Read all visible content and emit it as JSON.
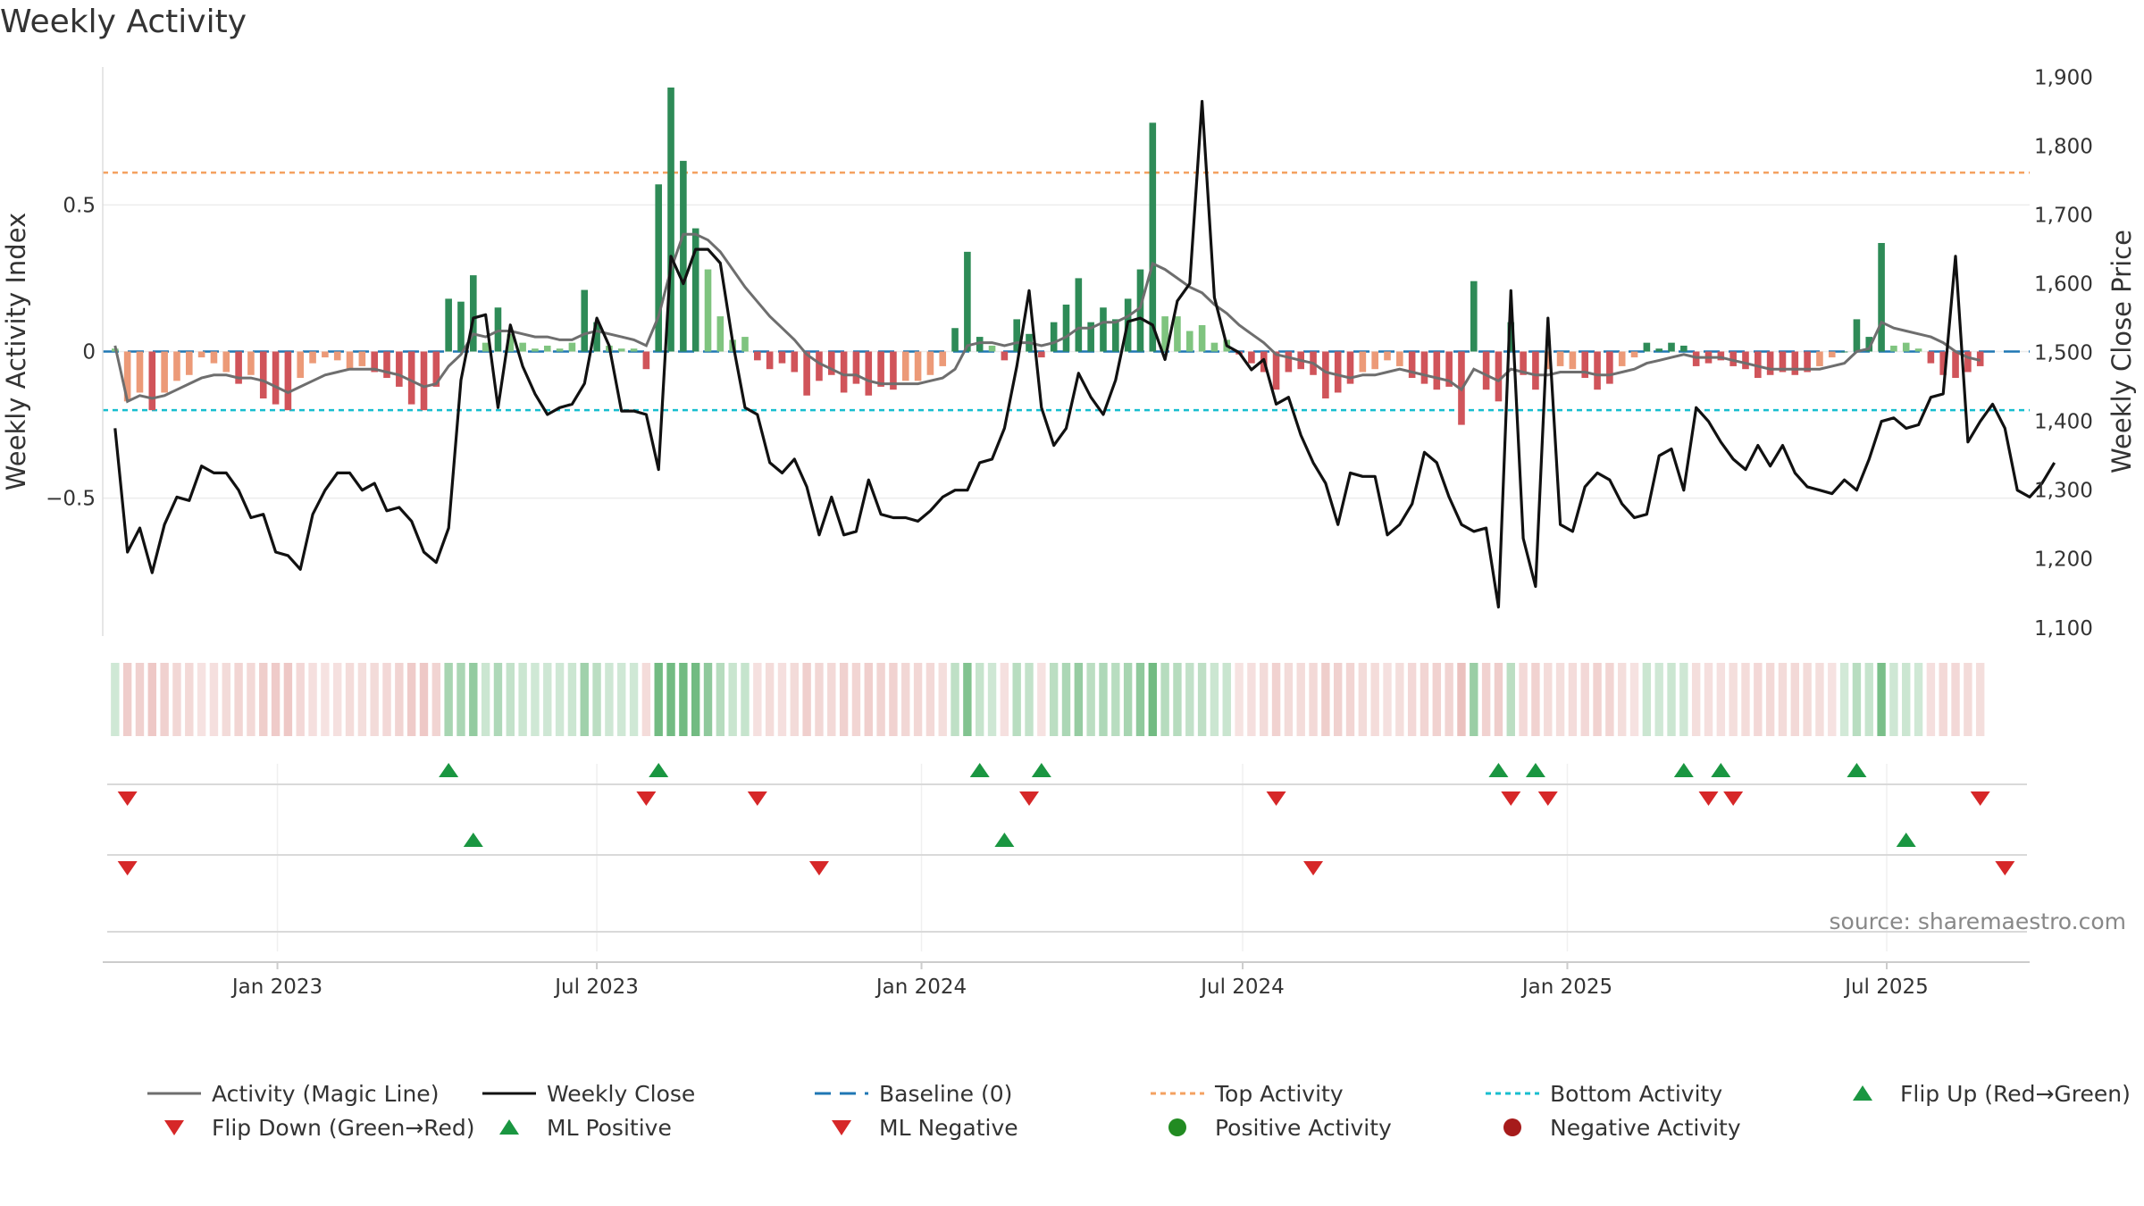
{
  "title": "Weekly Activity",
  "source": "source: sharemaestro.com",
  "colors": {
    "bar_dark_green": "#2e8b57",
    "bar_light_green": "#7fc47f",
    "bar_dark_red": "#d0545a",
    "bar_light_red": "#ec9a78",
    "magic_line": "#6e6e6e",
    "close_line": "#111111",
    "baseline": "#1f77b4",
    "top_line": "#f4a261",
    "bottom_line": "#17becf",
    "flip_up": "#1a9641",
    "flip_down": "#d62728",
    "positive_dot": "#228b22",
    "negative_dot": "#a61b1b",
    "strip_green": "#6ab77b",
    "strip_red": "#e3a7a3"
  },
  "chart_data": {
    "type": "bar+line",
    "title": "Weekly Activity",
    "x_dates_start": "2022-10-01",
    "x_tick_labels": [
      "Jan 2023",
      "Jul 2023",
      "Jan 2024",
      "Jul 2024",
      "Jan 2025",
      "Jul 2025"
    ],
    "x_tick_dates": [
      "2023-01-01",
      "2023-07-01",
      "2024-01-01",
      "2024-07-01",
      "2025-01-01",
      "2025-07-01"
    ],
    "x_range": [
      "2022-09-24",
      "2025-09-20"
    ],
    "left_axis": {
      "label": "Weekly Activity Index",
      "ylim": [
        -0.97,
        0.97
      ],
      "ticks": [
        0.5,
        0,
        -0.5
      ],
      "tick_labels": [
        "0.5",
        "0",
        "−0.5"
      ]
    },
    "right_axis": {
      "label": "Weekly Close Price",
      "ylim": [
        1088,
        1915
      ],
      "ticks": [
        1900,
        1800,
        1700,
        1600,
        1500,
        1400,
        1300,
        1200,
        1100
      ],
      "tick_labels": [
        "1,900",
        "1,800",
        "1,700",
        "1,600",
        "1,500",
        "1,400",
        "1,300",
        "1,200",
        "1,100"
      ]
    },
    "top_activity": 0.61,
    "bottom_activity": -0.2,
    "activity_index": [
      0.01,
      -0.17,
      -0.14,
      -0.2,
      -0.14,
      -0.1,
      -0.08,
      -0.02,
      -0.04,
      -0.07,
      -0.11,
      -0.08,
      -0.16,
      -0.18,
      -0.2,
      -0.09,
      -0.04,
      -0.02,
      -0.03,
      -0.06,
      -0.05,
      -0.07,
      -0.09,
      -0.12,
      -0.18,
      -0.2,
      -0.12,
      0.18,
      0.17,
      0.26,
      0.03,
      0.15,
      0.06,
      0.03,
      0.01,
      0.02,
      0.01,
      0.03,
      0.21,
      0.1,
      0.02,
      0.01,
      0.01,
      -0.06,
      0.57,
      0.9,
      0.65,
      0.42,
      0.28,
      0.12,
      0.04,
      0.05,
      -0.03,
      -0.06,
      -0.04,
      -0.07,
      -0.15,
      -0.1,
      -0.08,
      -0.14,
      -0.11,
      -0.15,
      -0.12,
      -0.13,
      -0.1,
      -0.1,
      -0.08,
      -0.05,
      0.08,
      0.34,
      0.05,
      0.02,
      -0.03,
      0.11,
      0.06,
      -0.02,
      0.1,
      0.16,
      0.25,
      0.1,
      0.15,
      0.11,
      0.18,
      0.28,
      0.78,
      0.12,
      0.12,
      0.07,
      0.09,
      0.03,
      0.04,
      -0.01,
      -0.04,
      -0.07,
      -0.13,
      -0.07,
      -0.06,
      -0.08,
      -0.16,
      -0.14,
      -0.11,
      -0.07,
      -0.06,
      -0.03,
      -0.05,
      -0.09,
      -0.11,
      -0.13,
      -0.12,
      -0.25,
      0.24,
      -0.13,
      -0.17,
      0.1,
      -0.08,
      -0.13,
      -0.06,
      -0.05,
      -0.06,
      -0.09,
      -0.13,
      -0.11,
      -0.05,
      -0.02,
      0.03,
      0.01,
      0.03,
      0.02,
      -0.05,
      -0.04,
      -0.03,
      -0.05,
      -0.06,
      -0.09,
      -0.08,
      -0.07,
      -0.08,
      -0.07,
      -0.05,
      -0.02,
      0.0,
      0.11,
      0.05,
      0.37,
      0.02,
      0.03,
      0.01,
      -0.04,
      -0.08,
      -0.09,
      -0.07,
      -0.05
    ],
    "magic_line": [
      0.02,
      -0.17,
      -0.15,
      -0.16,
      -0.15,
      -0.13,
      -0.11,
      -0.09,
      -0.08,
      -0.08,
      -0.09,
      -0.09,
      -0.1,
      -0.12,
      -0.14,
      -0.12,
      -0.1,
      -0.08,
      -0.07,
      -0.06,
      -0.06,
      -0.06,
      -0.07,
      -0.08,
      -0.1,
      -0.12,
      -0.11,
      -0.05,
      -0.01,
      0.06,
      0.05,
      0.07,
      0.07,
      0.06,
      0.05,
      0.05,
      0.04,
      0.04,
      0.06,
      0.07,
      0.06,
      0.05,
      0.04,
      0.02,
      0.12,
      0.28,
      0.4,
      0.4,
      0.38,
      0.34,
      0.28,
      0.22,
      0.17,
      0.12,
      0.08,
      0.04,
      -0.01,
      -0.04,
      -0.06,
      -0.08,
      -0.08,
      -0.1,
      -0.11,
      -0.11,
      -0.11,
      -0.11,
      -0.1,
      -0.09,
      -0.06,
      0.02,
      0.03,
      0.03,
      0.02,
      0.03,
      0.03,
      0.02,
      0.03,
      0.05,
      0.08,
      0.08,
      0.1,
      0.1,
      0.12,
      0.15,
      0.3,
      0.28,
      0.25,
      0.22,
      0.2,
      0.16,
      0.13,
      0.09,
      0.06,
      0.03,
      -0.01,
      -0.02,
      -0.03,
      -0.04,
      -0.07,
      -0.08,
      -0.09,
      -0.08,
      -0.08,
      -0.07,
      -0.06,
      -0.07,
      -0.08,
      -0.09,
      -0.1,
      -0.13,
      -0.06,
      -0.08,
      -0.1,
      -0.06,
      -0.07,
      -0.08,
      -0.08,
      -0.07,
      -0.07,
      -0.07,
      -0.08,
      -0.08,
      -0.07,
      -0.06,
      -0.04,
      -0.03,
      -0.02,
      -0.01,
      -0.02,
      -0.02,
      -0.02,
      -0.03,
      -0.04,
      -0.05,
      -0.06,
      -0.06,
      -0.06,
      -0.06,
      -0.06,
      -0.05,
      -0.04,
      0.0,
      0.01,
      0.1,
      0.08,
      0.07,
      0.06,
      0.05,
      0.03,
      0.0,
      -0.02,
      -0.03
    ],
    "weekly_close": [
      1390,
      1210,
      1245,
      1180,
      1250,
      1290,
      1285,
      1335,
      1325,
      1325,
      1300,
      1260,
      1265,
      1210,
      1205,
      1185,
      1265,
      1300,
      1325,
      1325,
      1300,
      1310,
      1270,
      1275,
      1255,
      1210,
      1195,
      1245,
      1460,
      1550,
      1555,
      1420,
      1540,
      1480,
      1440,
      1410,
      1420,
      1425,
      1455,
      1550,
      1510,
      1415,
      1415,
      1410,
      1330,
      1640,
      1600,
      1650,
      1650,
      1630,
      1515,
      1420,
      1410,
      1340,
      1325,
      1345,
      1305,
      1235,
      1290,
      1235,
      1240,
      1315,
      1265,
      1260,
      1260,
      1255,
      1270,
      1290,
      1300,
      1300,
      1340,
      1345,
      1390,
      1480,
      1590,
      1420,
      1365,
      1390,
      1470,
      1435,
      1410,
      1460,
      1545,
      1550,
      1540,
      1490,
      1575,
      1600,
      1865,
      1580,
      1510,
      1500,
      1475,
      1490,
      1425,
      1435,
      1380,
      1340,
      1310,
      1250,
      1325,
      1320,
      1320,
      1235,
      1250,
      1280,
      1355,
      1340,
      1290,
      1250,
      1240,
      1245,
      1130,
      1590,
      1230,
      1160,
      1550,
      1250,
      1240,
      1305,
      1325,
      1315,
      1280,
      1260,
      1265,
      1350,
      1360,
      1300,
      1420,
      1400,
      1370,
      1345,
      1330,
      1365,
      1335,
      1365,
      1325,
      1305,
      1300,
      1295,
      1315,
      1300,
      1345,
      1400,
      1405,
      1390,
      1395,
      1435,
      1440,
      1640,
      1370,
      1400,
      1425,
      1390,
      1300,
      1290,
      1310,
      1340
    ],
    "flip_up_rows": [
      {
        "index": 27
      },
      {
        "index": 44
      },
      {
        "index": 70
      },
      {
        "index": 75
      },
      {
        "index": 112
      },
      {
        "index": 115
      },
      {
        "index": 127
      },
      {
        "index": 130
      },
      {
        "index": 141
      }
    ],
    "flip_down_rows": [
      {
        "index": 1
      },
      {
        "index": 43
      },
      {
        "index": 52
      },
      {
        "index": 74
      },
      {
        "index": 94
      },
      {
        "index": 113
      },
      {
        "index": 116
      },
      {
        "index": 129
      },
      {
        "index": 131
      },
      {
        "index": 151
      }
    ],
    "ml_positive": [
      {
        "index": 29
      },
      {
        "index": 72
      },
      {
        "index": 145
      }
    ],
    "ml_negative": [
      {
        "index": 1
      },
      {
        "index": 57
      },
      {
        "index": 97
      },
      {
        "index": 153
      }
    ]
  },
  "legend": [
    {
      "label": "Activity (Magic Line)",
      "kind": "line-gray"
    },
    {
      "label": "Weekly Close",
      "kind": "line-black"
    },
    {
      "label": "Baseline (0)",
      "kind": "dash-blue"
    },
    {
      "label": "Top Activity",
      "kind": "dot-orange"
    },
    {
      "label": "Bottom Activity",
      "kind": "dot-cyan"
    },
    {
      "label": "Flip Up (Red→Green)",
      "kind": "tri-up-green"
    },
    {
      "label": "Flip Down (Green→Red)",
      "kind": "tri-down-red"
    },
    {
      "label": "ML Positive",
      "kind": "tri-up-green"
    },
    {
      "label": "ML Negative",
      "kind": "tri-down-red"
    },
    {
      "label": "Positive Activity",
      "kind": "dot-green"
    },
    {
      "label": "Negative Activity",
      "kind": "dot-darkred"
    }
  ]
}
